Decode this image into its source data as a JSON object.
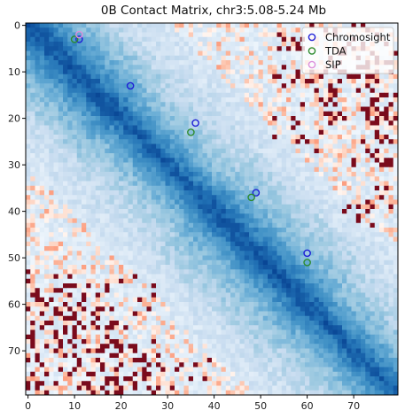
{
  "chart_data": {
    "type": "heatmap",
    "title": "0B Contact Matrix, chr3:5.08-5.24 Mb",
    "matrix_size": 80,
    "xlim": [
      0,
      79
    ],
    "ylim": [
      79,
      0
    ],
    "x_ticks": [
      0,
      10,
      20,
      30,
      40,
      50,
      60,
      70
    ],
    "y_ticks": [
      0,
      10,
      20,
      30,
      40,
      50,
      60,
      70
    ],
    "xlabel": "",
    "ylabel": "",
    "grid": false,
    "colormap": "RdBu (high contact = blue, low contact = red)",
    "legend_position": "top-right",
    "series": [
      {
        "name": "Chromosight",
        "color": "#1f1fd6",
        "points": [
          {
            "x": 11,
            "y": 3
          },
          {
            "x": 22,
            "y": 13
          },
          {
            "x": 36,
            "y": 21
          },
          {
            "x": 49,
            "y": 36
          },
          {
            "x": 60,
            "y": 49
          }
        ]
      },
      {
        "name": "TDA",
        "color": "#2e8b2e",
        "points": [
          {
            "x": 10,
            "y": 3
          },
          {
            "x": 35,
            "y": 23
          },
          {
            "x": 48,
            "y": 37
          },
          {
            "x": 60,
            "y": 51
          }
        ]
      },
      {
        "name": "SIP",
        "color": "#dc8fdc",
        "points": [
          {
            "x": 11,
            "y": 2
          }
        ]
      }
    ]
  }
}
